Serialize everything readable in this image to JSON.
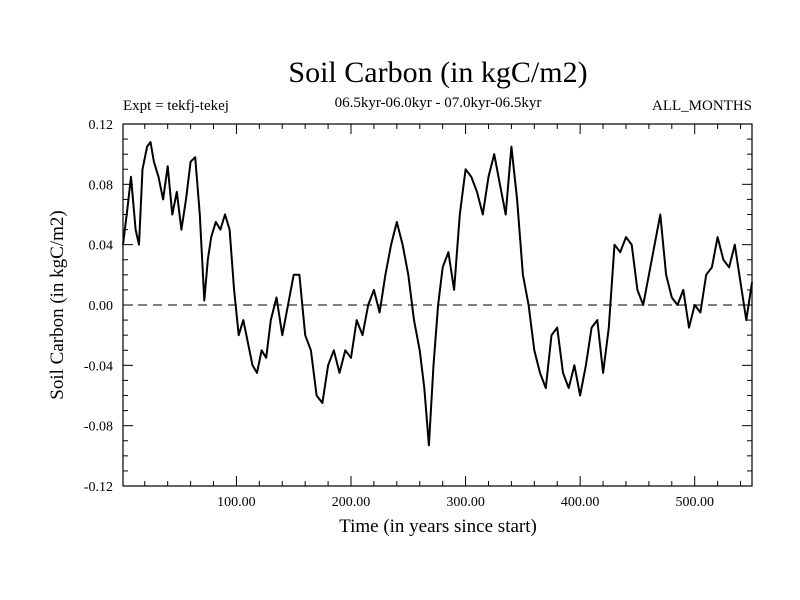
{
  "chart_data": {
    "type": "line",
    "title": "Soil Carbon (in kgC/m2)",
    "subtitle": "06.5kyr-06.0kyr - 07.0kyr-06.5kyr",
    "experiment_label": "Expt = tekfj-tekej",
    "period_label": "ALL_MONTHS",
    "xlabel": "Time (in years since start)",
    "ylabel": "Soil Carbon (in kgC/m2)",
    "xlim": [
      1,
      550
    ],
    "ylim": [
      -0.12,
      0.12
    ],
    "x_ticks": [
      100,
      200,
      300,
      400,
      500
    ],
    "x_tick_labels": [
      "100.00",
      "200.00",
      "300.00",
      "400.00",
      "500.00"
    ],
    "y_ticks": [
      -0.12,
      -0.08,
      -0.04,
      0.0,
      0.04,
      0.08,
      0.12
    ],
    "y_tick_labels": [
      "-0.12",
      "-0.08",
      "-0.04",
      "0.00",
      "0.04",
      "0.08",
      "0.12"
    ],
    "reference_line": {
      "y": 0.0,
      "style": "dashed"
    },
    "series": [
      {
        "name": "Soil Carbon",
        "color": "#000000",
        "x": [
          1,
          5,
          8,
          12,
          15,
          18,
          22,
          25,
          28,
          32,
          36,
          40,
          44,
          48,
          52,
          56,
          60,
          64,
          68,
          72,
          75,
          78,
          82,
          86,
          90,
          94,
          98,
          102,
          106,
          110,
          114,
          118,
          122,
          126,
          130,
          135,
          140,
          145,
          150,
          155,
          160,
          165,
          170,
          175,
          180,
          185,
          190,
          195,
          200,
          205,
          210,
          215,
          220,
          225,
          230,
          235,
          240,
          245,
          250,
          255,
          260,
          264,
          268,
          272,
          276,
          280,
          285,
          290,
          295,
          300,
          305,
          310,
          315,
          320,
          325,
          330,
          335,
          340,
          345,
          350,
          355,
          360,
          365,
          370,
          375,
          380,
          385,
          390,
          395,
          400,
          405,
          410,
          415,
          420,
          425,
          430,
          435,
          440,
          445,
          450,
          455,
          460,
          465,
          470,
          475,
          480,
          485,
          490,
          495,
          500,
          505,
          510,
          515,
          520,
          525,
          530,
          535,
          540,
          545,
          550
        ],
        "y": [
          0.04,
          0.065,
          0.085,
          0.05,
          0.04,
          0.09,
          0.105,
          0.108,
          0.095,
          0.085,
          0.07,
          0.092,
          0.06,
          0.075,
          0.05,
          0.07,
          0.095,
          0.098,
          0.06,
          0.003,
          0.03,
          0.045,
          0.055,
          0.05,
          0.06,
          0.05,
          0.01,
          -0.02,
          -0.01,
          -0.025,
          -0.04,
          -0.045,
          -0.03,
          -0.035,
          -0.01,
          0.005,
          -0.02,
          0.0,
          0.02,
          0.02,
          -0.02,
          -0.03,
          -0.06,
          -0.065,
          -0.04,
          -0.03,
          -0.045,
          -0.03,
          -0.035,
          -0.01,
          -0.02,
          0.0,
          0.01,
          -0.005,
          0.02,
          0.04,
          0.055,
          0.04,
          0.02,
          -0.01,
          -0.03,
          -0.055,
          -0.093,
          -0.04,
          0.0,
          0.025,
          0.035,
          0.01,
          0.06,
          0.09,
          0.085,
          0.075,
          0.06,
          0.085,
          0.1,
          0.08,
          0.06,
          0.105,
          0.07,
          0.02,
          0.0,
          -0.03,
          -0.045,
          -0.055,
          -0.02,
          -0.015,
          -0.045,
          -0.055,
          -0.04,
          -0.06,
          -0.04,
          -0.015,
          -0.01,
          -0.045,
          -0.015,
          0.04,
          0.035,
          0.045,
          0.04,
          0.01,
          0.0,
          0.02,
          0.04,
          0.06,
          0.02,
          0.005,
          0.0,
          0.01,
          -0.015,
          0.0,
          -0.005,
          0.02,
          0.025,
          0.045,
          0.03,
          0.025,
          0.04,
          0.015,
          -0.01,
          0.015
        ]
      }
    ]
  }
}
